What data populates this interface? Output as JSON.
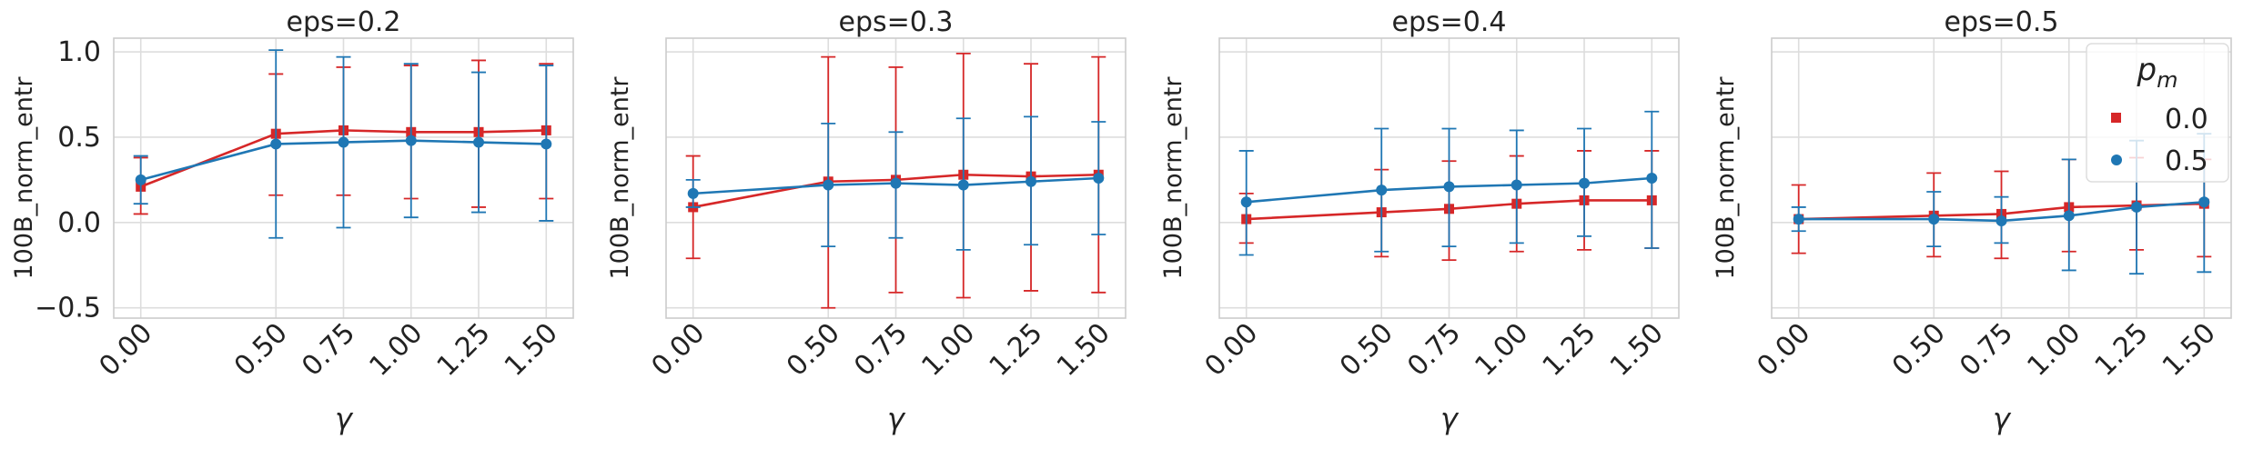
{
  "chart_data": [
    {
      "type": "line",
      "title": "eps=0.2",
      "xlabel": "γ",
      "ylabel": "100B_norm_entr",
      "x": [
        0.0,
        0.5,
        0.75,
        1.0,
        1.25,
        1.5
      ],
      "x_tick_labels": [
        "0.00",
        "0.50",
        "0.75",
        "1.00",
        "1.25",
        "1.50"
      ],
      "ylim": [
        -0.56,
        1.08
      ],
      "y_ticks": [
        -0.5,
        0.0,
        0.5,
        1.0
      ],
      "y_tick_labels": [
        "−0.5",
        "0.0",
        "0.5",
        "1.0"
      ],
      "show_y_tick_labels": true,
      "grid": true,
      "series": [
        {
          "name": "0.0",
          "color": "#d62728",
          "marker": "square",
          "values": [
            0.21,
            0.52,
            0.54,
            0.53,
            0.53,
            0.54
          ],
          "err_low": [
            0.05,
            0.16,
            0.16,
            0.14,
            0.09,
            0.14
          ],
          "err_high": [
            0.38,
            0.87,
            0.91,
            0.92,
            0.95,
            0.93
          ]
        },
        {
          "name": "0.5",
          "color": "#1f77b4",
          "marker": "circle",
          "values": [
            0.25,
            0.46,
            0.47,
            0.48,
            0.47,
            0.46
          ],
          "err_low": [
            0.11,
            -0.09,
            -0.03,
            0.03,
            0.06,
            0.01
          ],
          "err_high": [
            0.39,
            1.01,
            0.97,
            0.93,
            0.88,
            0.92
          ]
        }
      ]
    },
    {
      "type": "line",
      "title": "eps=0.3",
      "xlabel": "γ",
      "ylabel": "100B_norm_entr",
      "x": [
        0.0,
        0.5,
        0.75,
        1.0,
        1.25,
        1.5
      ],
      "x_tick_labels": [
        "0.00",
        "0.50",
        "0.75",
        "1.00",
        "1.25",
        "1.50"
      ],
      "ylim": [
        -0.56,
        1.08
      ],
      "show_y_tick_labels": false,
      "grid": true,
      "series": [
        {
          "name": "0.0",
          "color": "#d62728",
          "marker": "square",
          "values": [
            0.09,
            0.24,
            0.25,
            0.28,
            0.27,
            0.28
          ],
          "err_low": [
            -0.21,
            -0.5,
            -0.41,
            -0.44,
            -0.4,
            -0.41
          ],
          "err_high": [
            0.39,
            0.97,
            0.91,
            0.99,
            0.93,
            0.97
          ]
        },
        {
          "name": "0.5",
          "color": "#1f77b4",
          "marker": "circle",
          "values": [
            0.17,
            0.22,
            0.23,
            0.22,
            0.24,
            0.26
          ],
          "err_low": [
            0.09,
            -0.14,
            -0.09,
            -0.16,
            -0.13,
            -0.07
          ],
          "err_high": [
            0.25,
            0.58,
            0.53,
            0.61,
            0.62,
            0.59
          ]
        }
      ]
    },
    {
      "type": "line",
      "title": "eps=0.4",
      "xlabel": "γ",
      "ylabel": "100B_norm_entr",
      "x": [
        0.0,
        0.5,
        0.75,
        1.0,
        1.25,
        1.5
      ],
      "x_tick_labels": [
        "0.00",
        "0.50",
        "0.75",
        "1.00",
        "1.25",
        "1.50"
      ],
      "ylim": [
        -0.56,
        1.08
      ],
      "show_y_tick_labels": false,
      "grid": true,
      "series": [
        {
          "name": "0.0",
          "color": "#d62728",
          "marker": "square",
          "values": [
            0.02,
            0.06,
            0.08,
            0.11,
            0.13,
            0.13
          ],
          "err_low": [
            -0.12,
            -0.2,
            -0.22,
            -0.17,
            -0.16,
            -0.15
          ],
          "err_high": [
            0.17,
            0.31,
            0.36,
            0.39,
            0.42,
            0.42
          ]
        },
        {
          "name": "0.5",
          "color": "#1f77b4",
          "marker": "circle",
          "values": [
            0.12,
            0.19,
            0.21,
            0.22,
            0.23,
            0.26
          ],
          "err_low": [
            -0.19,
            -0.17,
            -0.14,
            -0.12,
            -0.08,
            -0.15
          ],
          "err_high": [
            0.42,
            0.55,
            0.55,
            0.54,
            0.55,
            0.65
          ]
        }
      ]
    },
    {
      "type": "line",
      "title": "eps=0.5",
      "xlabel": "γ",
      "ylabel": "100B_norm_entr",
      "x": [
        0.0,
        0.5,
        0.75,
        1.0,
        1.25,
        1.5
      ],
      "x_tick_labels": [
        "0.00",
        "0.50",
        "0.75",
        "1.00",
        "1.25",
        "1.50"
      ],
      "ylim": [
        -0.56,
        1.08
      ],
      "show_y_tick_labels": false,
      "grid": true,
      "legend": {
        "title": "p_m",
        "title_main": "p",
        "title_sub": "m",
        "placement": "top-right",
        "entries": [
          "0.0",
          "0.5"
        ]
      },
      "series": [
        {
          "name": "0.0",
          "color": "#d62728",
          "marker": "square",
          "values": [
            0.02,
            0.04,
            0.05,
            0.09,
            0.1,
            0.11
          ],
          "err_low": [
            -0.18,
            -0.2,
            -0.21,
            -0.17,
            -0.16,
            -0.2
          ],
          "err_high": [
            0.22,
            0.29,
            0.3,
            0.37,
            0.38,
            0.37
          ]
        },
        {
          "name": "0.5",
          "color": "#1f77b4",
          "marker": "circle",
          "values": [
            0.02,
            0.02,
            0.01,
            0.04,
            0.09,
            0.12
          ],
          "err_low": [
            -0.05,
            -0.14,
            -0.12,
            -0.28,
            -0.3,
            -0.29
          ],
          "err_high": [
            0.09,
            0.18,
            0.15,
            0.37,
            0.48,
            0.52
          ]
        }
      ]
    }
  ]
}
